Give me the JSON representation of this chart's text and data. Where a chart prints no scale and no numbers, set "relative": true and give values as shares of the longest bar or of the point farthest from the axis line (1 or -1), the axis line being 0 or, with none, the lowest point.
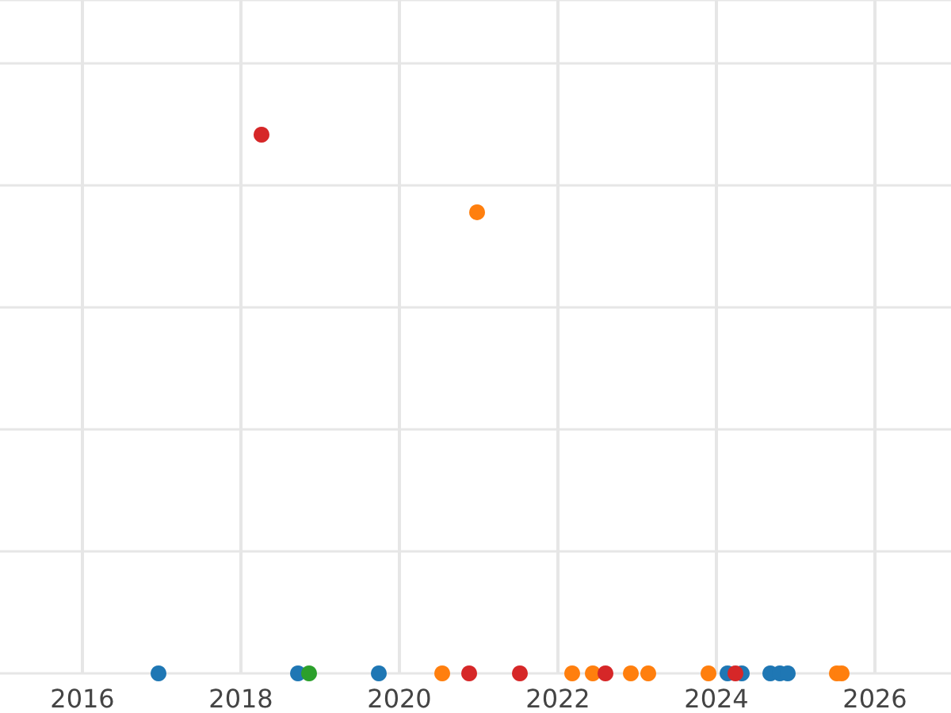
{
  "chart_data": {
    "type": "scatter",
    "relative": true,
    "grid": true,
    "marker": "circle",
    "xlim": [
      2014.96,
      2026.96
    ],
    "xticks": [
      2016,
      2018,
      2020,
      2022,
      2024,
      2026
    ],
    "series": [
      {
        "color": "#1f77b4",
        "x": [
          2016.96,
          2018.72,
          2019.74,
          2024.14,
          2024.32,
          2024.68,
          2024.8,
          2024.9
        ],
        "values": [
          0,
          0,
          0,
          0,
          0,
          0,
          0,
          0
        ]
      },
      {
        "color": "#ff7f0e",
        "x": [
          2020.54,
          2020.98,
          2022.18,
          2022.44,
          2022.92,
          2023.14,
          2023.9,
          2025.52,
          2025.58
        ],
        "values": [
          0,
          0.856,
          0,
          0,
          0,
          0,
          0,
          0,
          0
        ]
      },
      {
        "color": "#d62728",
        "x": [
          2018.26,
          2020.88,
          2021.52,
          2022.6,
          2024.24
        ],
        "values": [
          1,
          0,
          0,
          0,
          0
        ]
      },
      {
        "color": "#2ca02c",
        "x": [
          2018.86
        ],
        "values": [
          0
        ]
      }
    ]
  }
}
